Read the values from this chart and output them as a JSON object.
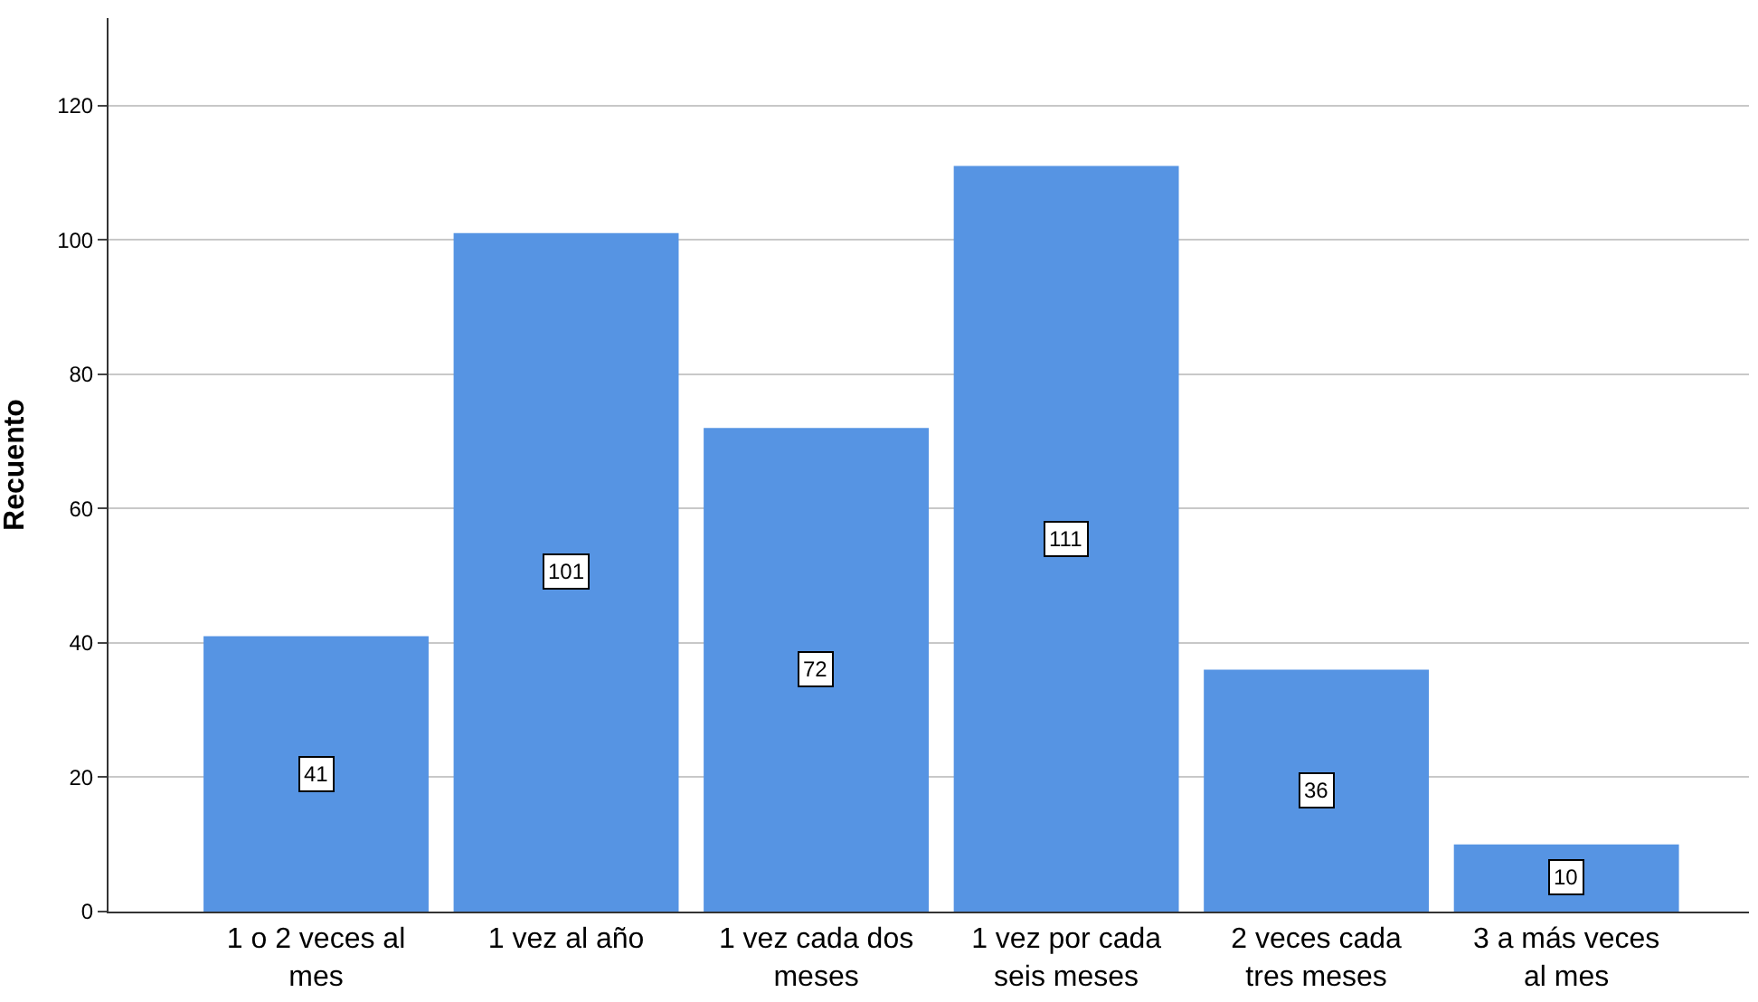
{
  "chart_data": {
    "type": "bar",
    "ylabel": "Recuento",
    "categories": [
      "1 o 2 veces al mes",
      "1 vez al año",
      "1 vez cada dos meses",
      "1 vez por cada seis meses",
      "2 veces cada tres meses",
      "3 a más veces al mes"
    ],
    "values": [
      41,
      101,
      72,
      111,
      36,
      10
    ],
    "color": "#5694e3",
    "ylim": [
      0,
      133
    ],
    "yticks": [
      0,
      20,
      40,
      60,
      80,
      100,
      120
    ],
    "grid": "y",
    "data_labels": true
  }
}
